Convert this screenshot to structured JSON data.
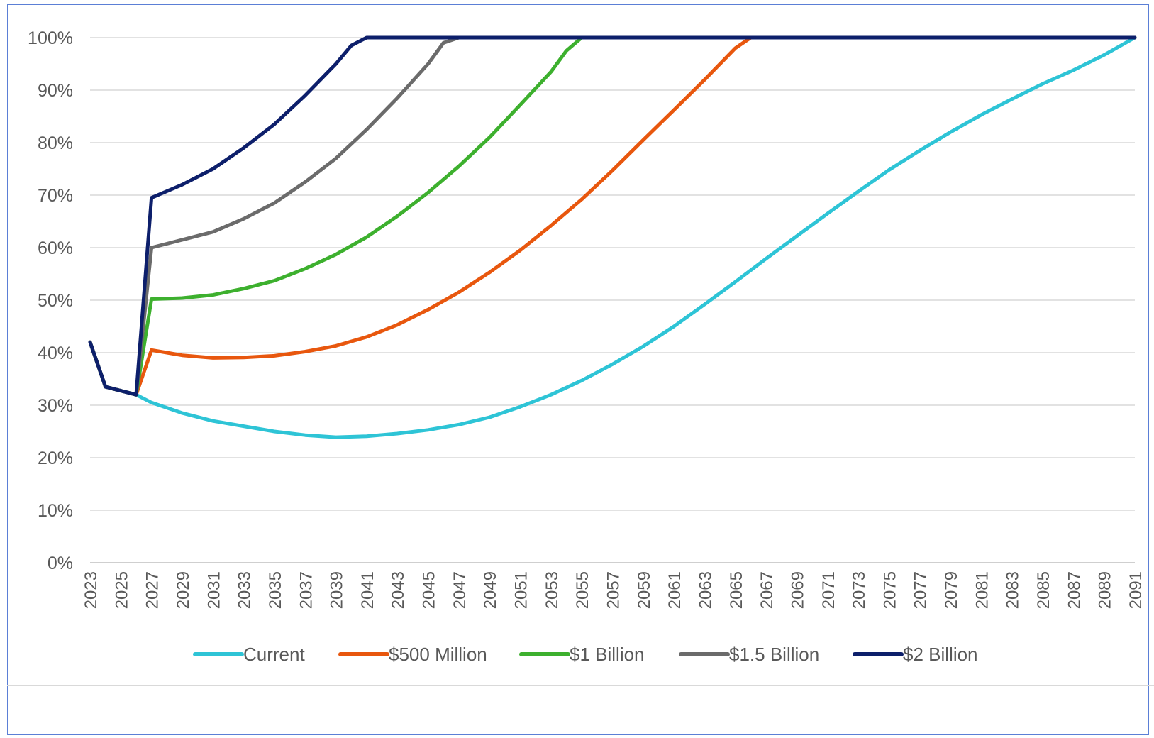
{
  "chart_data": {
    "type": "line",
    "title": "",
    "xlabel": "",
    "ylabel": "",
    "ylim": [
      0,
      100
    ],
    "xlim": [
      2023,
      2091
    ],
    "y_ticks": [
      "0%",
      "10%",
      "20%",
      "30%",
      "40%",
      "50%",
      "60%",
      "70%",
      "80%",
      "90%",
      "100%"
    ],
    "x_ticks": [
      "2023",
      "2025",
      "2027",
      "2029",
      "2031",
      "2033",
      "2035",
      "2037",
      "2039",
      "2041",
      "2043",
      "2045",
      "2047",
      "2049",
      "2051",
      "2053",
      "2055",
      "2057",
      "2059",
      "2061",
      "2063",
      "2065",
      "2067",
      "2069",
      "2071",
      "2073",
      "2075",
      "2077",
      "2079",
      "2081",
      "2083",
      "2085",
      "2087",
      "2089",
      "2091"
    ],
    "grid": true,
    "legend_position": "bottom",
    "series": [
      {
        "name": "Current",
        "color": "#2ec4d6",
        "points": [
          [
            2023,
            42
          ],
          [
            2024,
            33.5
          ],
          [
            2026,
            32
          ],
          [
            2027,
            30.5
          ],
          [
            2029,
            28.5
          ],
          [
            2031,
            27
          ],
          [
            2033,
            26
          ],
          [
            2035,
            25
          ],
          [
            2037,
            24.3
          ],
          [
            2039,
            23.9
          ],
          [
            2041,
            24.1
          ],
          [
            2043,
            24.6
          ],
          [
            2045,
            25.3
          ],
          [
            2047,
            26.3
          ],
          [
            2049,
            27.7
          ],
          [
            2051,
            29.7
          ],
          [
            2053,
            32
          ],
          [
            2055,
            34.7
          ],
          [
            2057,
            37.8
          ],
          [
            2059,
            41.2
          ],
          [
            2061,
            45
          ],
          [
            2063,
            49.2
          ],
          [
            2065,
            53.5
          ],
          [
            2067,
            57.9
          ],
          [
            2069,
            62.2
          ],
          [
            2071,
            66.5
          ],
          [
            2073,
            70.7
          ],
          [
            2075,
            74.8
          ],
          [
            2077,
            78.5
          ],
          [
            2079,
            82
          ],
          [
            2081,
            85.3
          ],
          [
            2083,
            88.3
          ],
          [
            2085,
            91.2
          ],
          [
            2087,
            93.8
          ],
          [
            2089,
            96.7
          ],
          [
            2091,
            100
          ]
        ]
      },
      {
        "name": "$500 Million",
        "color": "#e8570e",
        "points": [
          [
            2023,
            42
          ],
          [
            2024,
            33.5
          ],
          [
            2026,
            32
          ],
          [
            2027,
            40.5
          ],
          [
            2028,
            40
          ],
          [
            2029,
            39.5
          ],
          [
            2031,
            39
          ],
          [
            2033,
            39.1
          ],
          [
            2035,
            39.4
          ],
          [
            2037,
            40.2
          ],
          [
            2039,
            41.3
          ],
          [
            2041,
            43
          ],
          [
            2043,
            45.3
          ],
          [
            2045,
            48.2
          ],
          [
            2047,
            51.5
          ],
          [
            2049,
            55.3
          ],
          [
            2051,
            59.5
          ],
          [
            2053,
            64.2
          ],
          [
            2055,
            69.2
          ],
          [
            2057,
            74.7
          ],
          [
            2059,
            80.5
          ],
          [
            2061,
            86.2
          ],
          [
            2063,
            92
          ],
          [
            2065,
            98
          ],
          [
            2066,
            100
          ],
          [
            2091,
            100
          ]
        ]
      },
      {
        "name": "$1 Billion",
        "color": "#3db02e",
        "points": [
          [
            2023,
            42
          ],
          [
            2024,
            33.5
          ],
          [
            2026,
            32
          ],
          [
            2027,
            50.2
          ],
          [
            2029,
            50.4
          ],
          [
            2031,
            51
          ],
          [
            2033,
            52.2
          ],
          [
            2035,
            53.7
          ],
          [
            2037,
            56
          ],
          [
            2039,
            58.7
          ],
          [
            2041,
            62
          ],
          [
            2043,
            66
          ],
          [
            2045,
            70.5
          ],
          [
            2047,
            75.5
          ],
          [
            2049,
            81
          ],
          [
            2051,
            87.2
          ],
          [
            2053,
            93.5
          ],
          [
            2054,
            97.5
          ],
          [
            2055,
            100
          ],
          [
            2091,
            100
          ]
        ]
      },
      {
        "name": "$1.5 Billion",
        "color": "#6b6b6b",
        "points": [
          [
            2023,
            42
          ],
          [
            2024,
            33.5
          ],
          [
            2026,
            32
          ],
          [
            2027,
            60
          ],
          [
            2029,
            61.5
          ],
          [
            2031,
            63
          ],
          [
            2033,
            65.5
          ],
          [
            2035,
            68.5
          ],
          [
            2037,
            72.5
          ],
          [
            2039,
            77
          ],
          [
            2041,
            82.5
          ],
          [
            2043,
            88.5
          ],
          [
            2045,
            95
          ],
          [
            2046,
            99
          ],
          [
            2047,
            100
          ],
          [
            2091,
            100
          ]
        ]
      },
      {
        "name": "$2 Billion",
        "color": "#0d1f6b",
        "points": [
          [
            2023,
            42
          ],
          [
            2024,
            33.5
          ],
          [
            2026,
            32
          ],
          [
            2027,
            69.5
          ],
          [
            2029,
            72
          ],
          [
            2031,
            75
          ],
          [
            2033,
            79
          ],
          [
            2035,
            83.5
          ],
          [
            2037,
            89
          ],
          [
            2039,
            95
          ],
          [
            2040,
            98.5
          ],
          [
            2041,
            100
          ],
          [
            2091,
            100
          ]
        ]
      }
    ]
  }
}
